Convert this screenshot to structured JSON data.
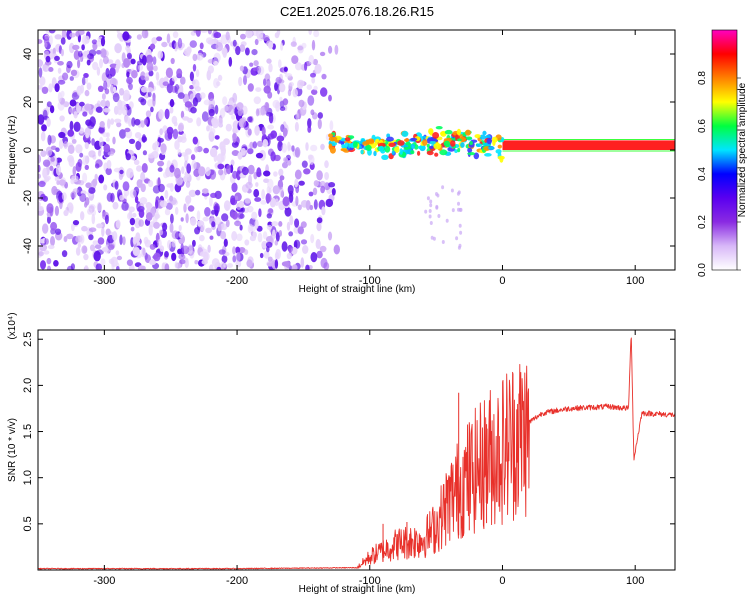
{
  "title": "C2E1.2025.076.18.26.R15",
  "chart_data": [
    {
      "type": "heatmap",
      "title": "C2E1.2025.076.18.26.R15",
      "xlabel": "Height of straight line (km)",
      "ylabel": "Frequency (Hz)",
      "xlim": [
        -350,
        130
      ],
      "ylim": [
        -50,
        50
      ],
      "x_ticks": [
        -300,
        -200,
        -100,
        0,
        100
      ],
      "y_ticks": [
        -40,
        -20,
        0,
        20,
        40
      ],
      "colorbar": {
        "label": "Normalized spectral amplitude",
        "range": [
          0,
          1
        ],
        "ticks": [
          "0.0",
          "0.2",
          "0.4",
          "0.6",
          "0.8"
        ],
        "colormap": [
          "#ffffff",
          "#d8b8f8",
          "#8a2be2",
          "#5a00f0",
          "#0000ff",
          "#00e5ff",
          "#00ff40",
          "#ffff00",
          "#ff8000",
          "#ff0000",
          "#ff00c0"
        ]
      },
      "regions": [
        {
          "name": "broadband noise",
          "x_range": [
            -350,
            -120
          ],
          "freq_range": [
            -50,
            50
          ],
          "amplitude": "0.1-0.3"
        },
        {
          "name": "carrier line",
          "x_range": [
            -130,
            130
          ],
          "freq_center": 2,
          "freq_halfwidth": 2,
          "amplitude": "0.9-1.0"
        }
      ],
      "carrier": [
        {
          "x": -130,
          "f": 3.5
        },
        {
          "x": -100,
          "f": 1.5
        },
        {
          "x": -80,
          "f": 1.0
        },
        {
          "x": -60,
          "f": 2.5
        },
        {
          "x": -40,
          "f": 4.0
        },
        {
          "x": -20,
          "f": 2.5
        },
        {
          "x": 0,
          "f": 2.0
        },
        {
          "x": 130,
          "f": 2.0
        }
      ]
    },
    {
      "type": "line",
      "xlabel": "Height of straight line (km)",
      "ylabel": "SNR (10 * v/v)",
      "y_multiplier": "(x10⁴)",
      "xlim": [
        -350,
        130
      ],
      "ylim": [
        0,
        2.6
      ],
      "x_ticks": [
        -300,
        -200,
        -100,
        0,
        100
      ],
      "y_ticks": [
        0.5,
        1.0,
        1.5,
        2.0,
        2.5
      ],
      "color": "#e8302a",
      "series": [
        {
          "values": [
            {
              "x": -350,
              "y": 0.01
            },
            {
              "x": -200,
              "y": 0.01
            },
            {
              "x": -110,
              "y": 0.02
            },
            {
              "x": -100,
              "y": 0.15
            },
            {
              "x": -80,
              "y": 0.3
            },
            {
              "x": -60,
              "y": 0.35
            },
            {
              "x": -50,
              "y": 0.5
            },
            {
              "x": -40,
              "y": 0.8
            },
            {
              "x": -30,
              "y": 1.0
            },
            {
              "x": -20,
              "y": 1.15
            },
            {
              "x": -10,
              "y": 1.3
            },
            {
              "x": 0,
              "y": 1.4
            },
            {
              "x": 10,
              "y": 1.55
            },
            {
              "x": 20,
              "y": 1.6
            },
            {
              "x": 30,
              "y": 1.7
            },
            {
              "x": 50,
              "y": 1.75
            },
            {
              "x": 80,
              "y": 1.77
            },
            {
              "x": 95,
              "y": 1.75
            },
            {
              "x": 97,
              "y": 2.6
            },
            {
              "x": 99,
              "y": 1.2
            },
            {
              "x": 105,
              "y": 1.7
            },
            {
              "x": 130,
              "y": 1.68
            }
          ],
          "spikes": [
            {
              "x": -33,
              "y": 1.92
            },
            {
              "x": -25,
              "y": 1.6
            },
            {
              "x": -12,
              "y": 1.58
            },
            {
              "x": -90,
              "y": 0.5
            },
            {
              "x": -72,
              "y": 0.52
            }
          ]
        }
      ]
    }
  ]
}
